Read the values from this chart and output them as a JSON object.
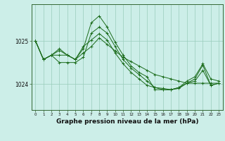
{
  "background_color": "#cceee8",
  "grid_color": "#99ccbb",
  "line_color": "#1a6b1a",
  "marker_color": "#1a6b1a",
  "xlabel": "Graphe pression niveau de la mer (hPa)",
  "xlabel_fontsize": 6.5,
  "ytick_labels": [
    "1024",
    "1025"
  ],
  "ytick_values": [
    1024.0,
    1025.0
  ],
  "ylim": [
    1023.4,
    1025.85
  ],
  "xlim": [
    -0.5,
    23.5
  ],
  "xtick_labels": [
    "0",
    "1",
    "2",
    "3",
    "4",
    "5",
    "6",
    "7",
    "8",
    "9",
    "10",
    "11",
    "12",
    "13",
    "14",
    "15",
    "16",
    "17",
    "18",
    "19",
    "20",
    "21",
    "22",
    "23"
  ],
  "series": [
    [
      1025.0,
      1024.57,
      1024.67,
      1024.67,
      1024.67,
      1024.57,
      1024.72,
      1024.87,
      1025.07,
      1024.92,
      1024.77,
      1024.62,
      1024.52,
      1024.42,
      1024.32,
      1024.22,
      1024.17,
      1024.12,
      1024.07,
      1024.02,
      1024.02,
      1024.02,
      1024.02,
      1024.02
    ],
    [
      1025.0,
      1024.57,
      1024.67,
      1024.5,
      1024.5,
      1024.5,
      1024.62,
      1025.18,
      1025.32,
      1025.18,
      1024.87,
      1024.57,
      1024.37,
      1024.22,
      1024.07,
      1023.92,
      1023.87,
      1023.87,
      1023.92,
      1024.02,
      1024.07,
      1024.32,
      1023.97,
      1024.02
    ],
    [
      1025.0,
      1024.57,
      1024.67,
      1024.78,
      1024.67,
      1024.57,
      1024.82,
      1025.42,
      1025.58,
      1025.32,
      1024.97,
      1024.67,
      1024.42,
      1024.27,
      1024.17,
      1023.87,
      1023.87,
      1023.87,
      1023.92,
      1024.07,
      1024.17,
      1024.47,
      1024.12,
      1024.07
    ],
    [
      1025.0,
      1024.57,
      1024.67,
      1024.82,
      1024.67,
      1024.57,
      1024.87,
      1025.02,
      1025.17,
      1025.02,
      1024.72,
      1024.47,
      1024.27,
      1024.12,
      1023.97,
      1023.92,
      1023.9,
      1023.87,
      1023.9,
      1024.02,
      1024.12,
      1024.44,
      1023.97,
      1024.02
    ]
  ]
}
